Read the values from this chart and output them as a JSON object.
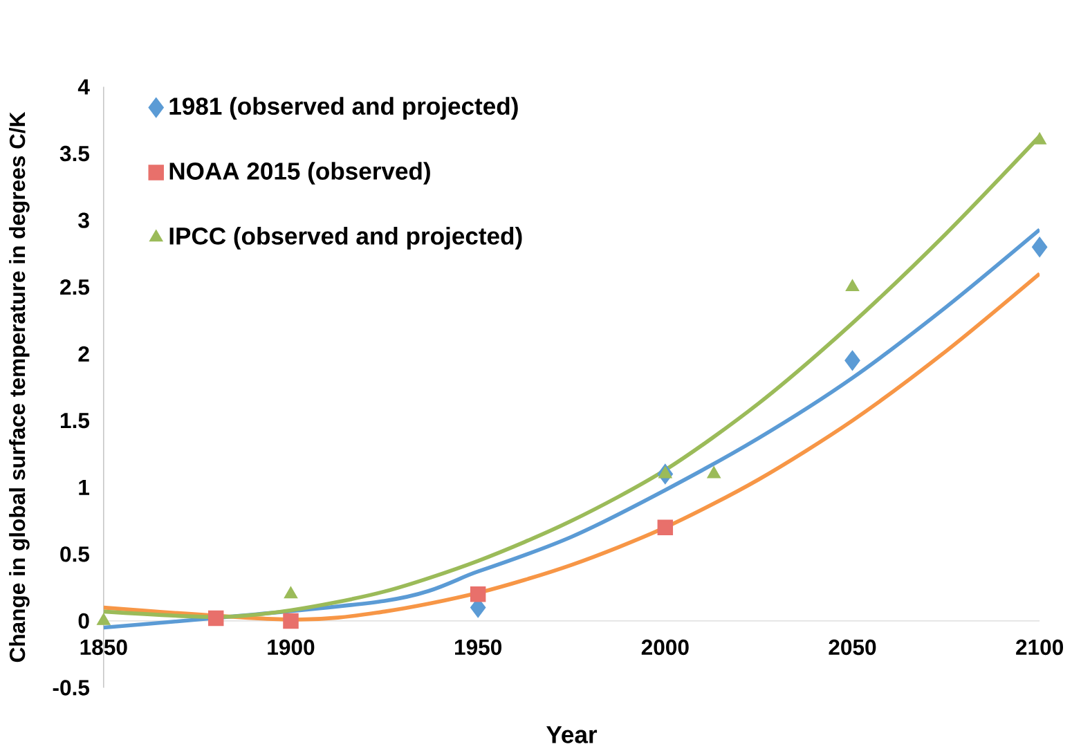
{
  "chart_data": {
    "type": "scatter",
    "xlabel": "Year",
    "ylabel": "Change in global surface temperature in degrees C/K",
    "xlim": [
      1850,
      2100
    ],
    "ylim": [
      -0.5,
      4
    ],
    "xticks": [
      1850,
      1900,
      1950,
      2000,
      2050,
      2100
    ],
    "yticks": [
      -0.5,
      0,
      0.5,
      1,
      1.5,
      2,
      2.5,
      3,
      3.5,
      4
    ],
    "legend": "top left",
    "series": [
      {
        "name": "1981 (observed and projected)",
        "marker": "diamond",
        "color": "#5b9bd5",
        "x": [
          1950,
          2000,
          2050,
          2100
        ],
        "values": [
          0.1,
          1.1,
          1.95,
          2.8
        ]
      },
      {
        "name": "NOAA 2015 (observed)",
        "marker": "square",
        "color": "#e8706b",
        "x": [
          1880,
          1900,
          1950,
          2000
        ],
        "values": [
          0.02,
          0,
          0.2,
          0.7
        ]
      },
      {
        "name": "IPCC (observed and projected)",
        "marker": "triangle",
        "color": "#9bbb59",
        "x": [
          1850,
          1900,
          2000,
          2013,
          2050,
          2100
        ],
        "values": [
          0,
          0.2,
          1.1,
          1.1,
          2.5,
          3.6
        ]
      },
      {
        "type": "line",
        "marker": "none",
        "line_style": "solid",
        "color": "#5b9bd5",
        "x": [
          1850,
          1925,
          1950,
          1975,
          2000,
          2025,
          2050,
          2075,
          2100
        ],
        "values": [
          -0.05,
          0.15,
          0.37,
          0.63,
          0.98,
          1.37,
          1.82,
          2.35,
          2.93
        ]
      },
      {
        "type": "line",
        "marker": "none",
        "line_style": "solid",
        "color": "#f79646",
        "x": [
          1850,
          1900,
          1925,
          1950,
          1975,
          2000,
          2025,
          2050,
          2075,
          2100
        ],
        "values": [
          0.1,
          0.01,
          0.07,
          0.21,
          0.42,
          0.7,
          1.06,
          1.5,
          2.02,
          2.6
        ]
      },
      {
        "type": "line",
        "marker": "none",
        "line_style": "solid",
        "color": "#9bbb59",
        "x": [
          1850,
          1880,
          1900,
          1925,
          1950,
          1975,
          2000,
          2025,
          2050,
          2075,
          2100
        ],
        "values": [
          0.07,
          0.03,
          0.08,
          0.22,
          0.45,
          0.75,
          1.13,
          1.63,
          2.23,
          2.9,
          3.63
        ]
      }
    ]
  }
}
